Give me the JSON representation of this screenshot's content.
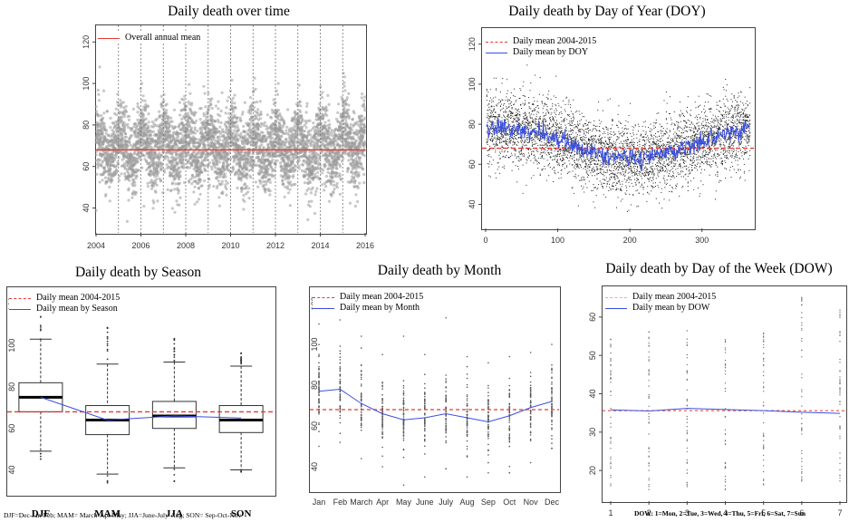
{
  "colors": {
    "mean_line": "#e53935",
    "blue_line": "#3a4fe0",
    "points_gray": "#9a9a9a",
    "points_dark": "#222222"
  },
  "chart_data": [
    {
      "id": "over_time",
      "type": "scatter",
      "title": "Daily death over time",
      "legend": [
        "Overall annual mean"
      ],
      "legend_placement": "top-left",
      "x_ticks": [
        "2004",
        "2006",
        "2008",
        "2010",
        "2012",
        "2014",
        "2016"
      ],
      "y_ticks": [
        "40",
        "60",
        "80",
        "100",
        "120"
      ],
      "xlim": [
        2004,
        2016
      ],
      "ylim": [
        28,
        128
      ],
      "overall_mean": 68,
      "year_boundaries": [
        2005,
        2006,
        2007,
        2008,
        2009,
        2010,
        2011,
        2012,
        2013,
        2014,
        2015
      ],
      "seasonal_pattern": {
        "winter_mean": 76,
        "summer_mean": 63,
        "noise_sd": 9,
        "points_per_year": 365
      }
    },
    {
      "id": "doy",
      "type": "scatter",
      "title": "Daily death by Day of Year (DOY)",
      "legend": [
        "Daily mean 2004-2015",
        "Daily mean by DOY"
      ],
      "legend_placement": "top-left",
      "x_ticks": [
        "0",
        "100",
        "200",
        "300"
      ],
      "y_ticks": [
        "40",
        "60",
        "80",
        "100",
        "120"
      ],
      "xlim": [
        -5,
        372
      ],
      "ylim": [
        28,
        128
      ],
      "daily_mean": 68,
      "doy_mean": {
        "winter_mean": 78,
        "summer_mean": 63,
        "noise_sd": 2.5
      }
    },
    {
      "id": "season",
      "type": "box",
      "title": "Daily death by Season",
      "legend": [
        "Daily mean 2004-2015",
        "Daily mean by Season"
      ],
      "legend_placement": "top-left",
      "categories": [
        "DJF",
        "MAM",
        "JJA",
        "SON"
      ],
      "y_ticks": [
        "40",
        "60",
        "80",
        "100",
        "120"
      ],
      "ylim": [
        28,
        128
      ],
      "daily_mean": 68,
      "boxes": [
        {
          "name": "DJF",
          "min": 49,
          "q1": 68,
          "median": 75,
          "q3": 82,
          "max": 103,
          "mean": 75,
          "out_low": 45,
          "out_high": 123
        },
        {
          "name": "MAM",
          "min": 38,
          "q1": 57,
          "median": 64,
          "q3": 71,
          "max": 91,
          "mean": 64,
          "out_low": 33,
          "out_high": 110
        },
        {
          "name": "JJA",
          "min": 41,
          "q1": 60,
          "median": 66,
          "q3": 73,
          "max": 92,
          "mean": 66,
          "out_low": 31,
          "out_high": 104
        },
        {
          "name": "SON",
          "min": 40,
          "q1": 58,
          "median": 64,
          "q3": 71,
          "max": 90,
          "mean": 65,
          "out_low": 38,
          "out_high": 97
        }
      ],
      "footnote": "DJF=Dec-Jan-Feb; MAM= March-Apr-May; JJA=June-July-Aug; SON= Sep-Oct-Nov"
    },
    {
      "id": "month",
      "type": "line",
      "title": "Daily death by Month",
      "legend": [
        "Daily mean 2004-2015",
        "Daily mean by Month"
      ],
      "legend_placement": "top-left",
      "categories": [
        "Jan",
        "Feb",
        "March",
        "Apr",
        "May",
        "June",
        "July",
        "Aug",
        "Sep",
        "Oct",
        "Nov",
        "Dec"
      ],
      "values": [
        77,
        78,
        71,
        66,
        63,
        64,
        66,
        64,
        62,
        65,
        69,
        72
      ],
      "spread": [
        [
          50,
          110
        ],
        [
          52,
          112
        ],
        [
          44,
          104
        ],
        [
          40,
          95
        ],
        [
          31,
          104
        ],
        [
          35,
          95
        ],
        [
          39,
          113
        ],
        [
          35,
          94
        ],
        [
          37,
          91
        ],
        [
          37,
          94
        ],
        [
          42,
          96
        ],
        [
          49,
          100
        ]
      ],
      "y_ticks": [
        "40",
        "60",
        "80",
        "100",
        "120"
      ],
      "ylim": [
        28,
        128
      ],
      "daily_mean": 68
    },
    {
      "id": "dow",
      "type": "line",
      "title": "Daily death by Day of the Week (DOW)",
      "legend": [
        "Daily mean 2004-2015",
        "Daily mean by DOW"
      ],
      "legend_placement": "top-left",
      "categories": [
        "1",
        "2",
        "3",
        "4",
        "5",
        "6",
        "7"
      ],
      "values": [
        35.8,
        35.5,
        36.2,
        35.9,
        35.6,
        35.2,
        34.9
      ],
      "spread": [
        [
          16,
          55
        ],
        [
          14,
          57
        ],
        [
          15,
          57
        ],
        [
          14,
          55
        ],
        [
          16,
          56
        ],
        [
          16,
          66
        ],
        [
          17,
          62
        ]
      ],
      "y_ticks": [
        "20",
        "30",
        "40",
        "50",
        "60"
      ],
      "ylim": [
        12,
        68
      ],
      "daily_mean": 35.6,
      "footnote": "DOW: 1=Mon, 2=Tue, 3=Wed, 4=Thu, 5=Fri, 6=Sat, 7=Sun"
    }
  ]
}
